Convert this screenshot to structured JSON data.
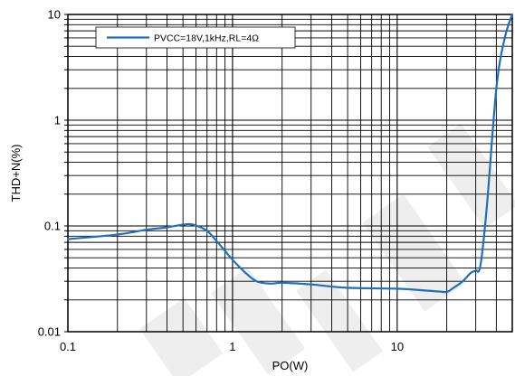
{
  "chart_data": {
    "type": "line",
    "xlabel": "PO(W)",
    "ylabel": "THD+N(%)",
    "x_scale": "log",
    "y_scale": "log",
    "xlim": [
      0.1,
      50
    ],
    "ylim": [
      0.01,
      10
    ],
    "x_ticks": [
      0.1,
      1,
      10
    ],
    "x_tick_labels": [
      "0.1",
      "1",
      "10"
    ],
    "y_ticks": [
      0.01,
      0.1,
      1,
      10
    ],
    "y_tick_labels": [
      "0.01",
      "0.1",
      "1",
      "10"
    ],
    "grid": true,
    "legend_position": "top-left",
    "series": [
      {
        "name": "PVCC=18V,1kHz,RL=4Ω",
        "color": "#1f6fbf",
        "x": [
          0.1,
          0.2,
          0.3,
          0.4,
          0.5,
          0.55,
          0.6,
          0.7,
          0.8,
          1.0,
          1.2,
          1.4,
          1.7,
          2.0,
          3.0,
          5.0,
          10,
          15,
          18,
          20,
          22,
          25,
          28,
          30,
          32,
          35,
          40,
          45,
          50
        ],
        "y": [
          0.075,
          0.083,
          0.092,
          0.097,
          0.103,
          0.104,
          0.101,
          0.09,
          0.072,
          0.048,
          0.036,
          0.03,
          0.0285,
          0.029,
          0.028,
          0.026,
          0.0255,
          0.0245,
          0.024,
          0.0238,
          0.026,
          0.03,
          0.036,
          0.038,
          0.042,
          0.15,
          2.0,
          6.0,
          10.0
        ]
      }
    ]
  }
}
